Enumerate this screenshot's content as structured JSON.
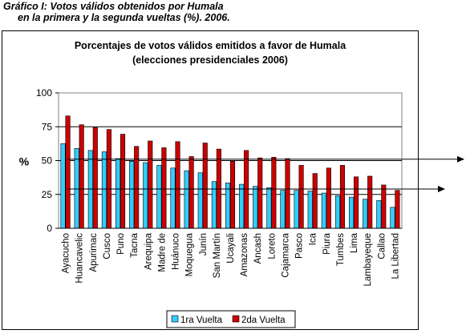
{
  "caption": {
    "line1": "Gráfico I: Votos válidos obtenidos por Humala",
    "line2": "en la primera y la segunda vueltas (%). 2006."
  },
  "chart_data": {
    "type": "bar",
    "title": "Porcentajes de votos válidos emitidos a favor de Humala",
    "subtitle": "(elecciones presidenciales 2006)",
    "ylabel": "%",
    "xlabel": "",
    "ylim": [
      0,
      100
    ],
    "yticks": [
      "0",
      "25",
      "50",
      "75",
      "100"
    ],
    "reference_lines": [
      75,
      50,
      25
    ],
    "categories": [
      "Ayacucho",
      "Huancavelic",
      "Apurimac",
      "Cusco",
      "Puno",
      "Tacna",
      "Arequipa",
      "Madre de",
      "Huánuco",
      "Moquegua",
      "Junín",
      "San Martín",
      "Ucayali",
      "Amazonas",
      "Ancash",
      "Loreto",
      "Cajamarca",
      "Pasco",
      "Ica",
      "Piura",
      "Tumbes",
      "Lima",
      "Lambayeque",
      "Callao",
      "La Libertad"
    ],
    "series": [
      {
        "name": "1ra Vuelta",
        "color": "#33CCFF",
        "values": [
          62.5,
          59,
          57.5,
          56.5,
          51.5,
          49.5,
          48.5,
          46.5,
          44.5,
          42.5,
          41,
          34.5,
          33.5,
          32.5,
          31,
          30,
          28,
          28,
          27.5,
          26,
          24,
          23,
          21.5,
          20.5,
          15.5
        ]
      },
      {
        "name": "2da Vuelta",
        "color": "#CC0000",
        "values": [
          83,
          76.5,
          74.5,
          73,
          69.5,
          60.5,
          64.5,
          59.5,
          64,
          53,
          63,
          58.5,
          49.5,
          57.5,
          52,
          52.5,
          51.5,
          46.5,
          40.5,
          44.5,
          46.5,
          38,
          38.5,
          32,
          28
        ]
      }
    ],
    "legend_position": "bottom",
    "arrows": [
      51,
      29
    ]
  }
}
